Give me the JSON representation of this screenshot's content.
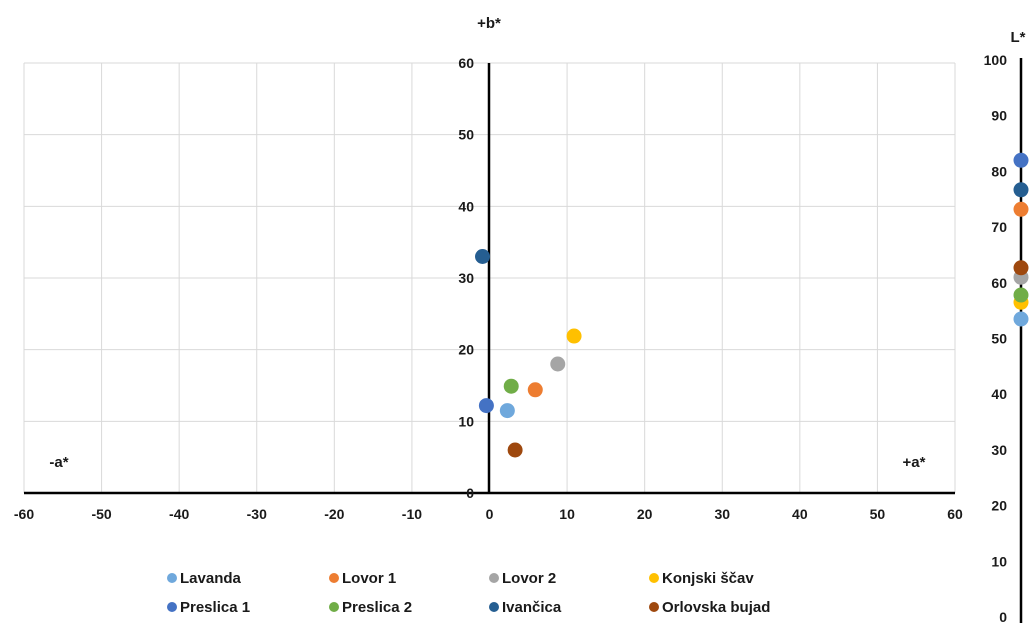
{
  "chart_data": {
    "type": "scatter",
    "ab_plot": {
      "x_axis_label": "+a*",
      "x_axis_neg_label": "-a*",
      "y_axis_label": "+b*",
      "xlim": [
        -60,
        60
      ],
      "ylim": [
        0,
        60
      ],
      "x_ticks": [
        -60,
        -50,
        -40,
        -30,
        -20,
        -10,
        0,
        10,
        20,
        30,
        40,
        50,
        60
      ],
      "y_ticks": [
        0,
        10,
        20,
        30,
        40,
        50,
        60
      ],
      "grid": true
    },
    "l_scale": {
      "label": "L*",
      "ylim": [
        0,
        100
      ],
      "ticks": [
        0,
        10,
        20,
        30,
        40,
        50,
        60,
        70,
        80,
        90,
        100
      ]
    },
    "series": [
      {
        "name": "Lavanda",
        "color": "#6fa8dc",
        "a": 2.3,
        "b": 11.5,
        "L": 53.5
      },
      {
        "name": "Lovor 1",
        "color": "#ed7d31",
        "a": 5.9,
        "b": 14.4,
        "L": 73.2
      },
      {
        "name": "Lovor 2",
        "color": "#a5a5a5",
        "a": 8.8,
        "b": 18.0,
        "L": 61.0
      },
      {
        "name": "Konjski ščav",
        "color": "#ffc000",
        "a": 10.9,
        "b": 21.9,
        "L": 56.5
      },
      {
        "name": "Preslica 1",
        "color": "#4472c4",
        "a": -0.4,
        "b": 12.2,
        "L": 82.0
      },
      {
        "name": "Preslica 2",
        "color": "#70ad47",
        "a": 2.8,
        "b": 14.9,
        "L": 57.8
      },
      {
        "name": "Ivančica",
        "color": "#255e91",
        "a": -0.9,
        "b": 33.0,
        "L": 76.7
      },
      {
        "name": "Orlovska bujad",
        "color": "#9e480e",
        "a": 3.3,
        "b": 6.0,
        "L": 62.7
      }
    ],
    "legend_position": "bottom"
  }
}
